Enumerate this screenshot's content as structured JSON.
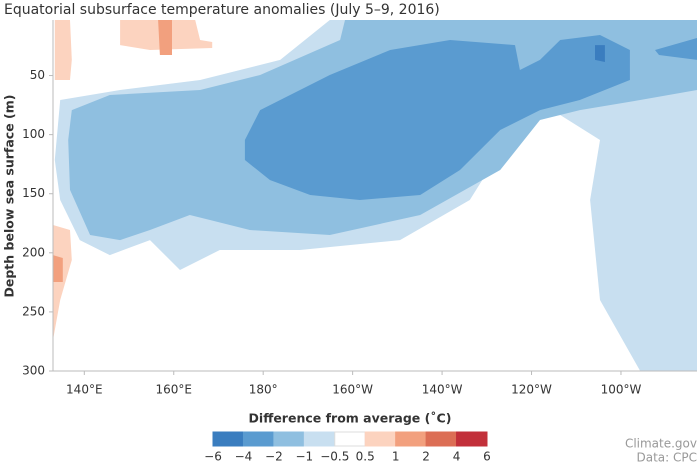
{
  "chart_data": {
    "type": "contour",
    "title": "Equatorial subsurface temperature anomalies (July 5–9, 2016)",
    "y_label": "Depth below sea surface (m)",
    "xlim": [
      133,
      277
    ],
    "ylim": [
      3,
      300
    ],
    "y_inverted": true,
    "xticks": [
      {
        "value": 140,
        "label": "140°E"
      },
      {
        "value": 160,
        "label": "160°E"
      },
      {
        "value": 180,
        "label": "180°"
      },
      {
        "value": 200,
        "label": "160°W"
      },
      {
        "value": 220,
        "label": "140°W"
      },
      {
        "value": 240,
        "label": "120°W"
      },
      {
        "value": 260,
        "label": "100°W"
      }
    ],
    "yticks": [
      50,
      100,
      150,
      200,
      250,
      300
    ],
    "colorbar": {
      "title": "Difference from average (˚C)",
      "boundaries": [
        {
          "value": -6,
          "label": "−6"
        },
        {
          "value": -4,
          "label": "−4"
        },
        {
          "value": -2,
          "label": "−2"
        },
        {
          "value": -1,
          "label": "−1"
        },
        {
          "value": -0.5,
          "label": "−0.5"
        },
        0.5,
        1,
        2,
        4,
        6
      ],
      "colors": [
        "#3a7dbf",
        "#5a9bd0",
        "#8fbfe0",
        "#c8dff0",
        "#ffffff",
        "#fcd3bf",
        "#f2a07e",
        "#dc6e55",
        "#c2303a"
      ]
    },
    "regions": [
      {
        "level": -0.5,
        "polygon": [
          [
            194.9,
            3
          ],
          [
            277,
            3
          ],
          [
            277,
            300
          ],
          [
            264.3,
            300
          ],
          [
            255.3,
            239.9
          ],
          [
            253.1,
            155.3
          ],
          [
            255.3,
            104.5
          ],
          [
            246.4,
            83.4
          ],
          [
            237.4,
            87.6
          ],
          [
            226.2,
            155.3
          ],
          [
            210.6,
            189.2
          ],
          [
            188.2,
            197.6
          ],
          [
            170.3,
            197.6
          ],
          [
            161.4,
            214.5
          ],
          [
            154.7,
            189.2
          ],
          [
            145.7,
            201.9
          ],
          [
            139,
            189.2
          ],
          [
            134.6,
            155.3
          ],
          [
            133.4,
            121.5
          ],
          [
            134.6,
            70.7
          ],
          [
            148,
            62.2
          ],
          [
            165.9,
            53.8
          ],
          [
            183.8,
            36.8
          ],
          [
            194.9,
            3
          ]
        ]
      },
      {
        "level": -1,
        "polygon": [
          [
            198.3,
            3
          ],
          [
            277,
            3
          ],
          [
            277,
            62.2
          ],
          [
            264.3,
            70.7
          ],
          [
            250.8,
            79.2
          ],
          [
            241.9,
            87.6
          ],
          [
            233,
            129.9
          ],
          [
            215.1,
            168
          ],
          [
            194.9,
            184.9
          ],
          [
            177,
            180.7
          ],
          [
            168.1,
            172.2
          ],
          [
            163.6,
            168
          ],
          [
            154.7,
            180.7
          ],
          [
            148,
            189.2
          ],
          [
            141.3,
            184.9
          ],
          [
            136.8,
            146.8
          ],
          [
            136.4,
            104.5
          ],
          [
            137.2,
            79.2
          ],
          [
            145.7,
            66.5
          ],
          [
            165.9,
            62.2
          ],
          [
            179.3,
            49.5
          ],
          [
            197.2,
            19.9
          ]
        ]
      },
      {
        "level": -2,
        "polygon": [
          [
            175.9,
            104.5
          ],
          [
            179.3,
            79.2
          ],
          [
            194.9,
            49.5
          ],
          [
            208.4,
            28.4
          ],
          [
            221.8,
            19.9
          ],
          [
            236.3,
            24.2
          ],
          [
            237.4,
            45.3
          ],
          [
            241.9,
            36.8
          ],
          [
            246.4,
            19.9
          ],
          [
            255.3,
            15.7
          ],
          [
            262,
            28.4
          ],
          [
            262,
            53.8
          ],
          [
            250.8,
            70.7
          ],
          [
            241.9,
            79.2
          ],
          [
            233,
            96.1
          ],
          [
            224,
            129.9
          ],
          [
            215.1,
            151.1
          ],
          [
            201.6,
            155.3
          ],
          [
            190.5,
            151.1
          ],
          [
            181.5,
            138.4
          ],
          [
            175.9,
            121.5
          ]
        ]
      },
      {
        "level": -2,
        "polygon": [
          [
            267.6,
            28.4
          ],
          [
            277,
            18.2
          ],
          [
            277,
            36.8
          ],
          [
            268.5,
            32.6
          ]
        ]
      },
      {
        "level": -4,
        "polygon": [
          [
            254.2,
            24.2
          ],
          [
            256.4,
            24.2
          ],
          [
            256.4,
            38.5
          ],
          [
            254.2,
            36.8
          ]
        ]
      },
      {
        "level": 0.5,
        "polygon": [
          [
            133.4,
            3
          ],
          [
            136.8,
            3
          ],
          [
            137.2,
            36.8
          ],
          [
            136.8,
            53.8
          ],
          [
            133.4,
            53.8
          ]
        ]
      },
      {
        "level": 0.5,
        "polygon": [
          [
            148,
            3
          ],
          [
            164.8,
            3
          ],
          [
            165.9,
            19.9
          ],
          [
            168.6,
            21.6
          ],
          [
            168.6,
            26.7
          ],
          [
            154.7,
            28.4
          ],
          [
            148,
            24.2
          ]
        ]
      },
      {
        "level": 0.5,
        "polygon": [
          [
            133,
            176.5
          ],
          [
            136.8,
            180.7
          ],
          [
            137.2,
            206.1
          ],
          [
            134.6,
            239.9
          ],
          [
            133,
            273.8
          ]
        ]
      },
      {
        "level": 1,
        "polygon": [
          [
            156.5,
            3
          ],
          [
            159.6,
            3
          ],
          [
            159.6,
            32.6
          ],
          [
            156.9,
            32.6
          ]
        ]
      },
      {
        "level": 1,
        "polygon": [
          [
            133,
            201.9
          ],
          [
            135.2,
            204.4
          ],
          [
            135.2,
            224.7
          ],
          [
            133,
            224.7
          ]
        ]
      }
    ],
    "credits": [
      "Climate.gov",
      "Data: CPC"
    ]
  }
}
